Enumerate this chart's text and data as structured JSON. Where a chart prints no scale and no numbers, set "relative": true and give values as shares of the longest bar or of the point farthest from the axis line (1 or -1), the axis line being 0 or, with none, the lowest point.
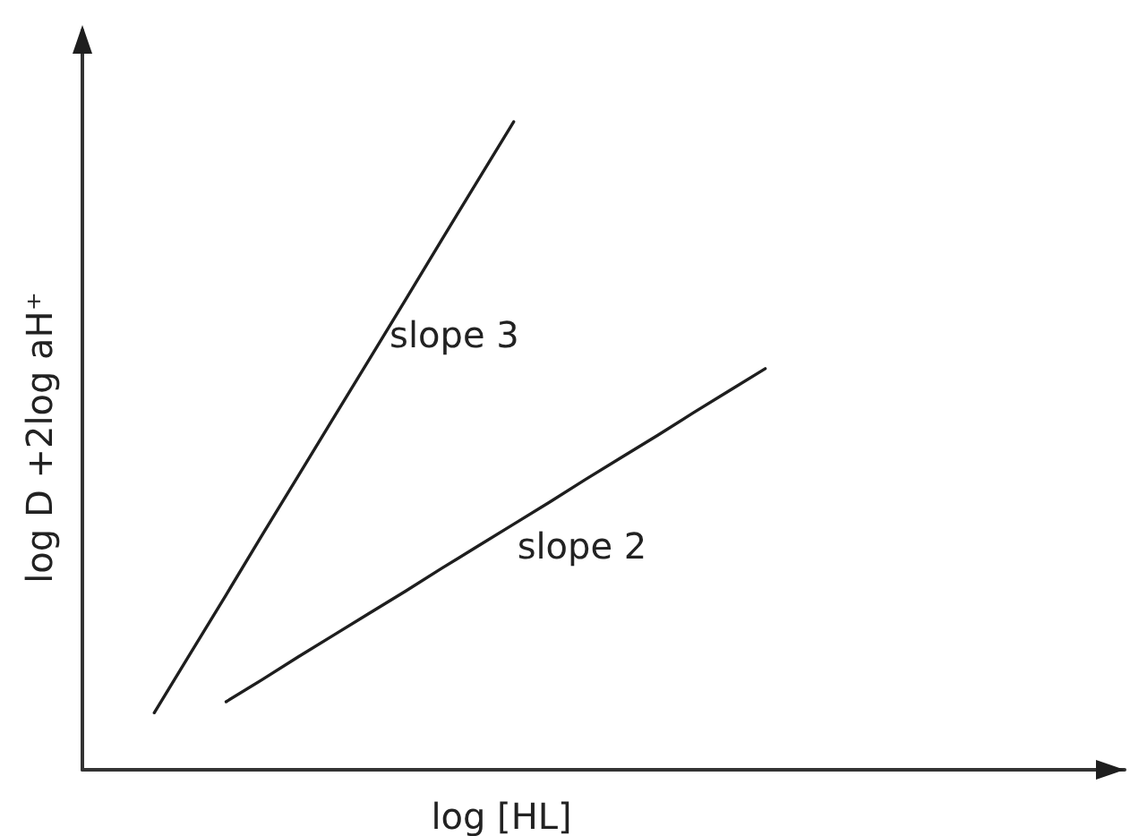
{
  "chart_data": {
    "type": "line",
    "relative": true,
    "xlabel": "log [HL]",
    "ylabel": "log D +2log aH⁺",
    "categories": [
      null,
      null,
      null,
      null,
      null,
      null,
      null,
      null,
      null,
      null,
      null,
      null,
      null,
      null,
      null,
      null,
      null,
      null,
      null,
      null,
      null,
      null,
      null,
      null,
      null,
      null,
      null,
      null,
      null,
      null
    ],
    "series": [
      {
        "name": "slope 3",
        "color": "#1e1e1e",
        "values": [
          null,
          null,
          0.088,
          0.179,
          0.27,
          0.362,
          0.453,
          0.544,
          0.635,
          0.726,
          0.818,
          0.909,
          1,
          null,
          null,
          null,
          null,
          null,
          null,
          null,
          null,
          null,
          null,
          null,
          null,
          null,
          null,
          null,
          null,
          null
        ]
      },
      {
        "name": "slope 2",
        "color": "#1e1e1e",
        "values": [
          null,
          null,
          null,
          null,
          0.105,
          0.139,
          0.174,
          0.208,
          0.242,
          0.276,
          0.311,
          0.345,
          0.379,
          0.413,
          0.448,
          0.482,
          0.516,
          0.551,
          0.585,
          0.619,
          null,
          null,
          null,
          null,
          null,
          null,
          null,
          null,
          null,
          null
        ]
      }
    ]
  }
}
